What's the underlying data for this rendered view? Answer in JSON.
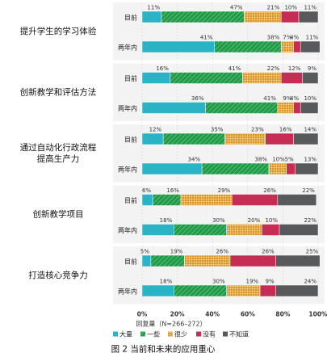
{
  "chart_data": {
    "type": "bar",
    "orientation": "horizontal",
    "stacked": true,
    "x_tick_labels": [
      "0%",
      "20%",
      "40%",
      "60%",
      "80%",
      "100%"
    ],
    "xlim": [
      0,
      100
    ],
    "xlabel": "回复量（N=266–272）",
    "groups": [
      {
        "name": "提升学生的学习体验",
        "bars": [
          {
            "label": "目前",
            "values": [
              11,
              47,
              21,
              10,
              11
            ]
          },
          {
            "label": "两年内",
            "values": [
              41,
              38,
              7,
              4,
              11
            ]
          }
        ]
      },
      {
        "name": "创新教学和评估方法",
        "bars": [
          {
            "label": "目前",
            "values": [
              16,
              41,
              22,
              12,
              9
            ]
          },
          {
            "label": "两年内",
            "values": [
              36,
              41,
              9,
              4,
              10
            ]
          }
        ]
      },
      {
        "name": "通过自动化行政流程提高生产力",
        "name_lines": [
          "通过自动化行政流程",
          "提高生产力"
        ],
        "bars": [
          {
            "label": "目前",
            "values": [
              12,
              35,
              23,
              16,
              14
            ]
          },
          {
            "label": "两年内",
            "values": [
              34,
              38,
              10,
              5,
              13
            ]
          }
        ]
      },
      {
        "name": "创新教学项目",
        "bars": [
          {
            "label": "目前",
            "values": [
              6,
              16,
              29,
              26,
              22
            ]
          },
          {
            "label": "两年内",
            "values": [
              18,
              30,
              20,
              10,
              22
            ]
          }
        ]
      },
      {
        "name": "打造核心竞争力",
        "bars": [
          {
            "label": "目前",
            "values": [
              5,
              19,
              26,
              26,
              25
            ]
          },
          {
            "label": "两年内",
            "values": [
              18,
              30,
              19,
              9,
              24
            ]
          }
        ]
      }
    ],
    "series": [
      {
        "name": "大量",
        "color": "#29b3c4",
        "pattern": "solid"
      },
      {
        "name": "一些",
        "color": "#1f9a47",
        "pattern": "hatch"
      },
      {
        "name": "很少",
        "color": "#d9932b",
        "pattern": "grid"
      },
      {
        "name": "没有",
        "color": "#c62d55",
        "pattern": "solid"
      },
      {
        "name": "不知道",
        "color": "#58595b",
        "pattern": "solid"
      }
    ],
    "legend_position": "bottom",
    "caption": "图 2  当前和未来的应用重心"
  }
}
